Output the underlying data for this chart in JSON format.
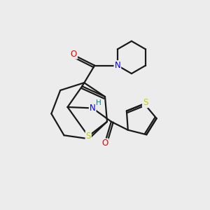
{
  "bg_color": "#ececec",
  "atom_colors": {
    "C": "#000000",
    "N": "#0000ee",
    "O": "#ee0000",
    "S": "#cccc00",
    "H": "#008888"
  },
  "bond_color": "#1a1a1a",
  "bond_lw": 1.6,
  "figsize": [
    3.0,
    3.0
  ],
  "dpi": 100
}
